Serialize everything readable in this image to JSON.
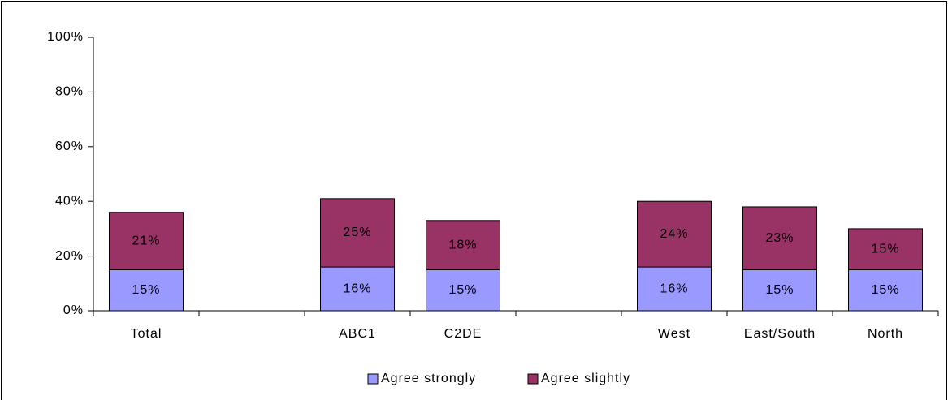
{
  "chart_data": {
    "type": "stacked_bar",
    "categories": [
      "Total",
      null,
      "ABC1",
      "C2DE",
      null,
      "West",
      "East/South",
      "North"
    ],
    "series": [
      {
        "name": "Agree strongly",
        "color": "#9999ff",
        "values": [
          15,
          null,
          16,
          15,
          null,
          16,
          15,
          15
        ],
        "value_labels": [
          "15%",
          null,
          "16%",
          "15%",
          null,
          "16%",
          "15%",
          "15%"
        ]
      },
      {
        "name": "Agree slightly",
        "color": "#993366",
        "values": [
          21,
          null,
          25,
          18,
          null,
          24,
          23,
          15
        ],
        "value_labels": [
          "21%",
          null,
          "25%",
          "18%",
          null,
          "24%",
          "23%",
          "15%"
        ]
      }
    ],
    "ylim": [
      0,
      100
    ],
    "yticks": [
      {
        "value": 0,
        "label": "0%"
      },
      {
        "value": 20,
        "label": "20%"
      },
      {
        "value": 40,
        "label": "40%"
      },
      {
        "value": 60,
        "label": "60%"
      },
      {
        "value": 80,
        "label": "80%"
      },
      {
        "value": 100,
        "label": "100%"
      }
    ],
    "grid": false,
    "legend": "bottom"
  }
}
